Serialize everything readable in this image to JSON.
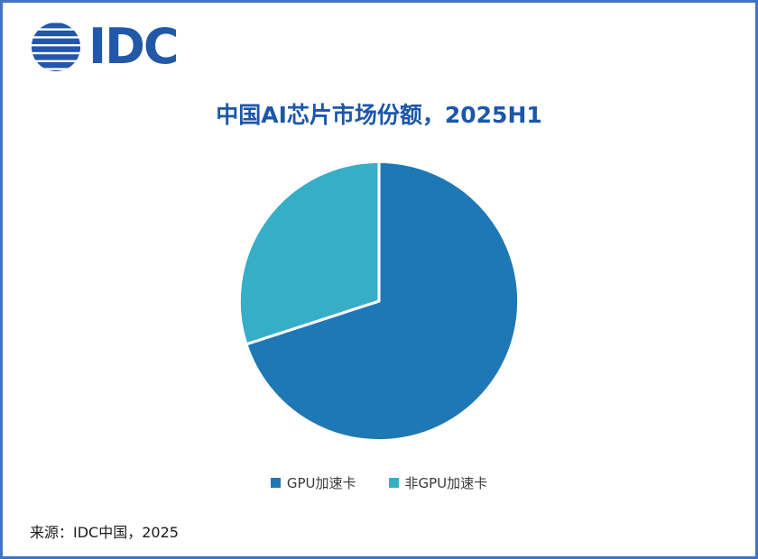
{
  "logo": {
    "text": "IDC",
    "color": "#2158A8"
  },
  "chart_data": {
    "type": "pie",
    "title": "中国AI芯片市场份额，2025H1",
    "slices": [
      {
        "key": "gpu",
        "label": "GPU加速卡",
        "value": 70,
        "color": "#1E78B5"
      },
      {
        "key": "non-gpu",
        "label": "非GPU加速卡",
        "value": 30,
        "color": "#36AEC6"
      }
    ],
    "values_unit": "percent",
    "start_angle_deg": -90,
    "direction": "clockwise",
    "legend_position": "bottom",
    "slice_divider_color": "#FFFFFF"
  },
  "source": {
    "text": "来源：IDC中国，2025"
  },
  "frame": {
    "border_color": "#4472C4",
    "background": "#FFFFFF"
  }
}
